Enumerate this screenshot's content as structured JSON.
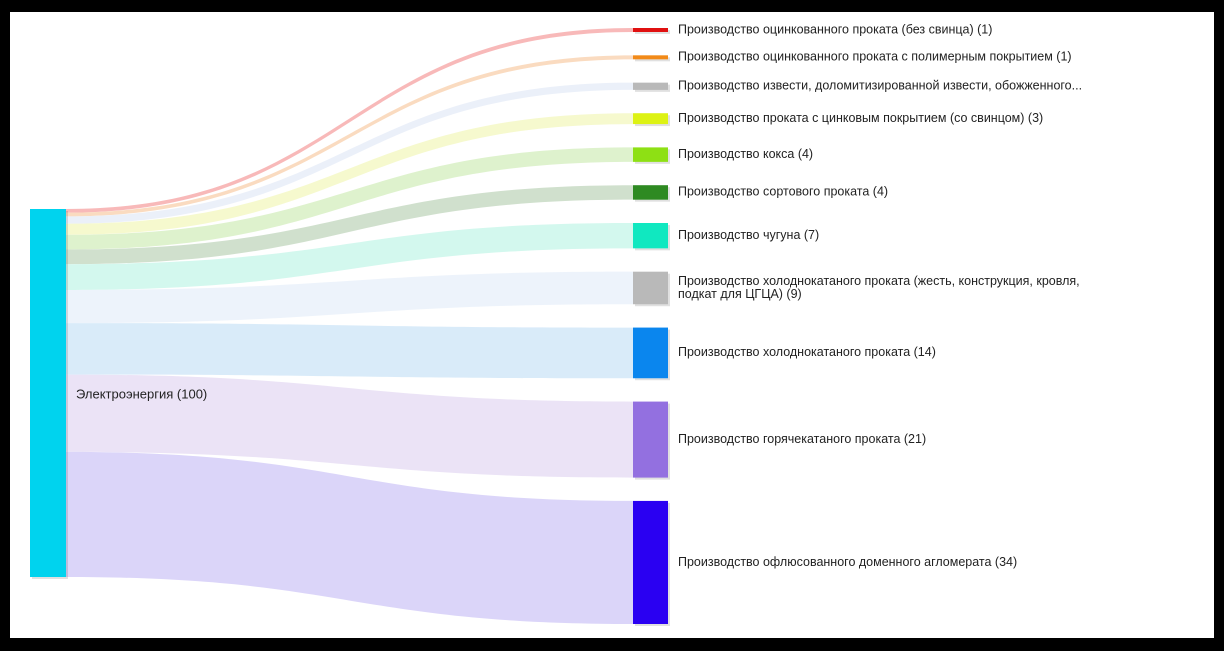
{
  "chart_data": {
    "type": "sankey",
    "title": "",
    "source": {
      "label": "Электроэнергия (100)",
      "value": 100,
      "color": "#00d3ee"
    },
    "targets": [
      {
        "label": "Производство оцинкованного проката (без свинца) (1)",
        "value": 1,
        "color": "#e01010",
        "link_color": "#f6a8a8"
      },
      {
        "label": "Производство оцинкованного проката с полимерным покрытием (1)",
        "value": 1,
        "color": "#f28a18",
        "link_color": "#f9d2b0"
      },
      {
        "label": "Производство извести, доломитизированной извести, обожженного...",
        "value": 2,
        "color": "#b9b9b9",
        "link_color": "#e6ecf8"
      },
      {
        "label": "Производство проката с цинковым покрытием (со свинцом) (3)",
        "value": 3,
        "color": "#ddf214",
        "link_color": "#f4f8c2"
      },
      {
        "label": "Производство кокса (4)",
        "value": 4,
        "color": "#8ee014",
        "link_color": "#d6efc0"
      },
      {
        "label": "Производство сортового проката (4)",
        "value": 4,
        "color": "#2e8a22",
        "link_color": "#c4d8c0"
      },
      {
        "label": "Производство чугуна (7)",
        "value": 7,
        "color": "#10e8c0",
        "link_color": "#c8f6ea"
      },
      {
        "label": [
          "Производство холоднокатаного проката (жесть, конструкция, кровля,",
          "подкат для ЦГЦА) (9)"
        ],
        "value": 9,
        "color": "#b9b9b9",
        "link_color": "#e9f0fa"
      },
      {
        "label": "Производство холоднокатаного проката (14)",
        "value": 14,
        "color": "#0a86ee",
        "link_color": "#cfe6f8"
      },
      {
        "label": "Производство горячекатаного проката (21)",
        "value": 21,
        "color": "#9370e0",
        "link_color": "#e6dcf4"
      },
      {
        "label": "Производство офлюсованного доменного агломерата (34)",
        "value": 34,
        "color": "#2a00f2",
        "link_color": "#d2caf8"
      }
    ]
  }
}
